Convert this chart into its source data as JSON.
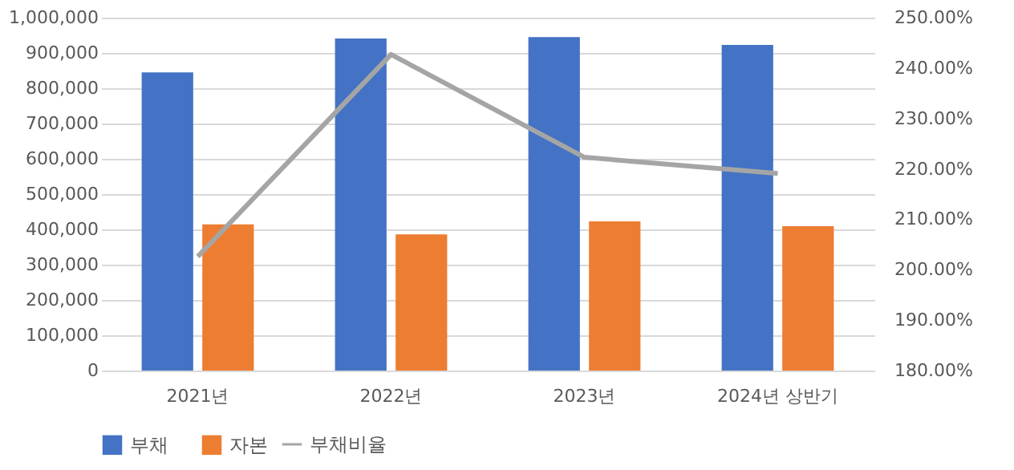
{
  "chart_data": {
    "type": "bar",
    "categories": [
      "2021년",
      "2022년",
      "2023년",
      "2024년 상반기"
    ],
    "series": [
      {
        "name": "부채",
        "color": "#4472c4",
        "values": [
          845000,
          941000,
          945000,
          923000
        ]
      },
      {
        "name": "자본",
        "color": "#ed7d31",
        "values": [
          414000,
          386000,
          423000,
          409000
        ]
      },
      {
        "name": "부채비율",
        "type": "line",
        "axis": "y2",
        "color": "#a5a5a5",
        "values": [
          202.6,
          242.7,
          222.3,
          219.1
        ]
      }
    ],
    "ylim": [
      0,
      1000000
    ],
    "yticks": [
      {
        "value": 0,
        "label": "0"
      },
      {
        "value": 100000,
        "label": "100,000"
      },
      {
        "value": 200000,
        "label": "200,000"
      },
      {
        "value": 300000,
        "label": "300,000"
      },
      {
        "value": 400000,
        "label": "400,000"
      },
      {
        "value": 500000,
        "label": "500,000"
      },
      {
        "value": 600000,
        "label": "600,000"
      },
      {
        "value": 700000,
        "label": "700,000"
      },
      {
        "value": 800000,
        "label": "800,000"
      },
      {
        "value": 900000,
        "label": "900,000"
      },
      {
        "value": 1000000,
        "label": "1,000,000"
      }
    ],
    "y2lim": [
      180,
      250
    ],
    "y2ticks": [
      {
        "value": 180,
        "label": "180.00%"
      },
      {
        "value": 190,
        "label": "190.00%"
      },
      {
        "value": 200,
        "label": "200.00%"
      },
      {
        "value": 210,
        "label": "210.00%"
      },
      {
        "value": 220,
        "label": "220.00%"
      },
      {
        "value": 230,
        "label": "230.00%"
      },
      {
        "value": 240,
        "label": "240.00%"
      },
      {
        "value": 250,
        "label": "250.00%"
      }
    ],
    "grid": "y",
    "legend": "bottom",
    "marker": "none",
    "line_style": "solid"
  }
}
